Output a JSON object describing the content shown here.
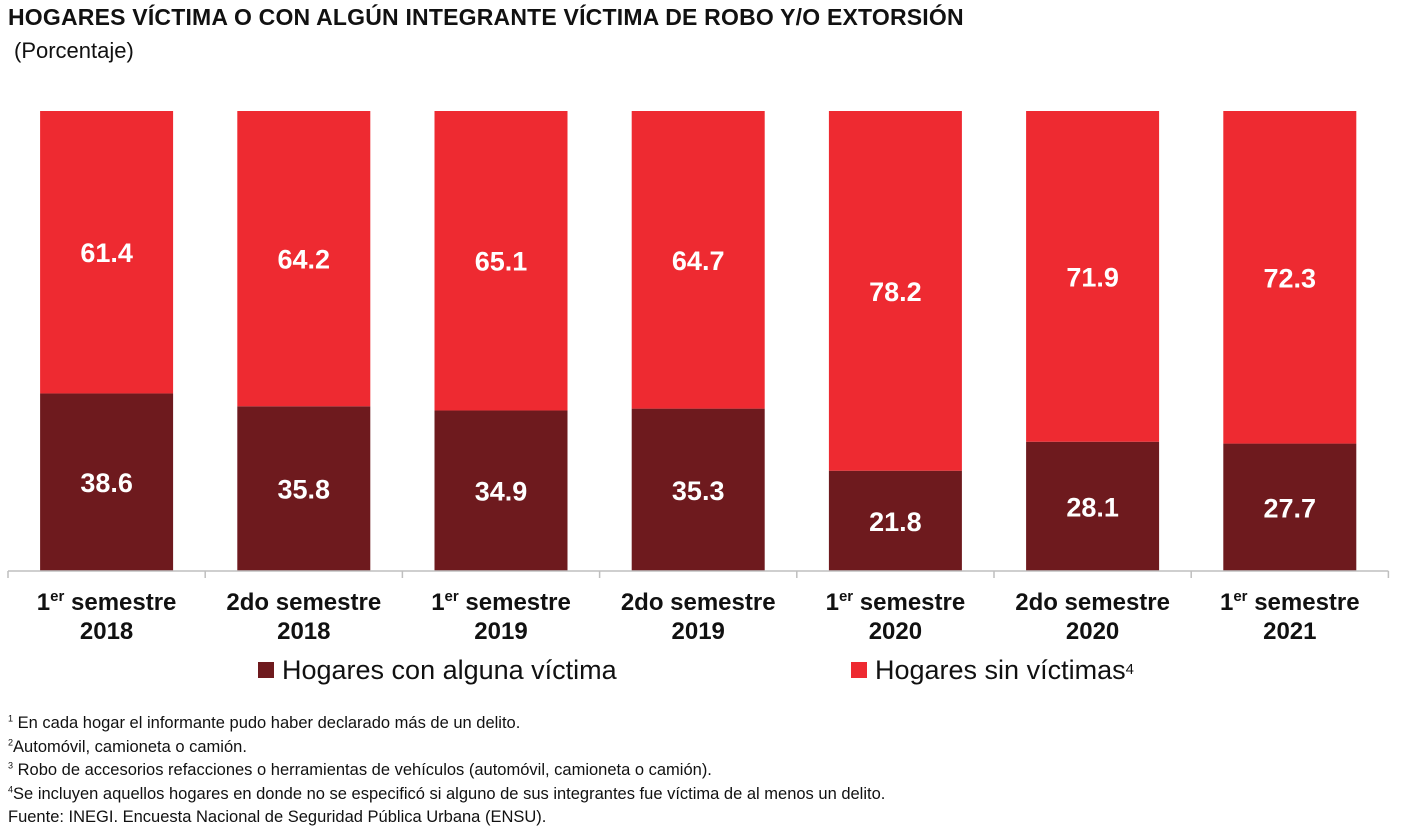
{
  "title": "HOGARES VÍCTIMA O CON ALGÚN INTEGRANTE VÍCTIMA DE ROBO Y/O EXTORSIÓN",
  "subtitle": "(Porcentaje)",
  "colors": {
    "con_victima": "#6E1A1E",
    "sin_victimas": "#EE2A31"
  },
  "chart_data": {
    "type": "bar",
    "stacked": true,
    "ylim": [
      0,
      100
    ],
    "grid": false,
    "categories": [
      {
        "ord": "1",
        "sup": "er",
        "line1": " semestre",
        "line2": "2018"
      },
      {
        "ord": "",
        "sup": "",
        "line1": "2do semestre",
        "line2": "2018"
      },
      {
        "ord": "1",
        "sup": "er",
        "line1": " semestre",
        "line2": "2019"
      },
      {
        "ord": "",
        "sup": "",
        "line1": "2do semestre",
        "line2": "2019"
      },
      {
        "ord": "1",
        "sup": "er",
        "line1": " semestre",
        "line2": "2020"
      },
      {
        "ord": "",
        "sup": "",
        "line1": "2do semestre",
        "line2": "2020"
      },
      {
        "ord": "1",
        "sup": "er",
        "line1": " semestre",
        "line2": "2021"
      }
    ],
    "series": [
      {
        "name": "Hogares con alguna víctima",
        "values": [
          "38.6",
          "35.8",
          "34.9",
          "35.3",
          "21.8",
          "28.1",
          "27.7"
        ]
      },
      {
        "name": "Hogares sin víctimas",
        "name_sup": "4",
        "values": [
          "61.4",
          "64.2",
          "65.1",
          "64.7",
          "78.2",
          "71.9",
          "72.3"
        ]
      }
    ],
    "legend_position": "bottom"
  },
  "notes": [
    {
      "sup": "1",
      "text": " En cada hogar el informante pudo haber declarado más de un delito."
    },
    {
      "sup": "2",
      "text": "Automóvil, camioneta o camión."
    },
    {
      "sup": "3",
      "text": " Robo de accesorios refacciones o herramientas de vehículos (automóvil, camioneta o camión)."
    },
    {
      "sup": "4",
      "text": "Se incluyen aquellos hogares en donde no se especificó si alguno de sus integrantes fue víctima de al menos un delito."
    }
  ],
  "source": "Fuente: INEGI. Encuesta Nacional de Seguridad Pública Urbana (ENSU)."
}
